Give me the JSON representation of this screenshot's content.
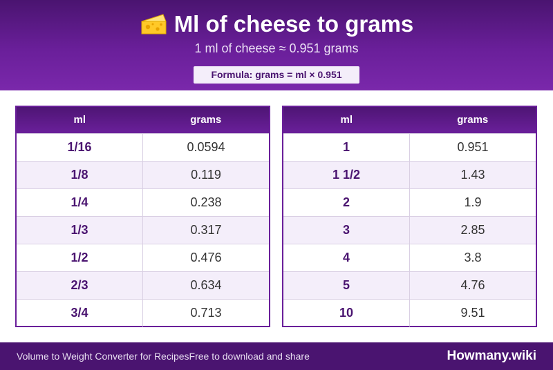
{
  "header": {
    "title": "Ml of cheese to grams",
    "subtitle": "1 ml of cheese ≈ 0.951 grams",
    "formula": "Formula: grams = ml × 0.951",
    "icon": "cheese-icon",
    "colors": {
      "header_dark": "#4a1470",
      "header_light": "#7a28ab",
      "accent_text": "#4a1470",
      "row_alt": "#f4eefa"
    }
  },
  "table_left": {
    "headers": [
      "ml",
      "grams"
    ],
    "rows": [
      [
        "1/16",
        "0.0594"
      ],
      [
        "1/8",
        "0.119"
      ],
      [
        "1/4",
        "0.238"
      ],
      [
        "1/3",
        "0.317"
      ],
      [
        "1/2",
        "0.476"
      ],
      [
        "2/3",
        "0.634"
      ],
      [
        "3/4",
        "0.713"
      ]
    ]
  },
  "table_right": {
    "headers": [
      "ml",
      "grams"
    ],
    "rows": [
      [
        "1",
        "0.951"
      ],
      [
        "1 1/2",
        "1.43"
      ],
      [
        "2",
        "1.9"
      ],
      [
        "3",
        "2.85"
      ],
      [
        "4",
        "3.8"
      ],
      [
        "5",
        "4.76"
      ],
      [
        "10",
        "9.51"
      ]
    ]
  },
  "footer": {
    "left": "Volume to Weight Converter for Recipes",
    "mid": "Free to download and share",
    "brand": "Howmany.wiki"
  }
}
